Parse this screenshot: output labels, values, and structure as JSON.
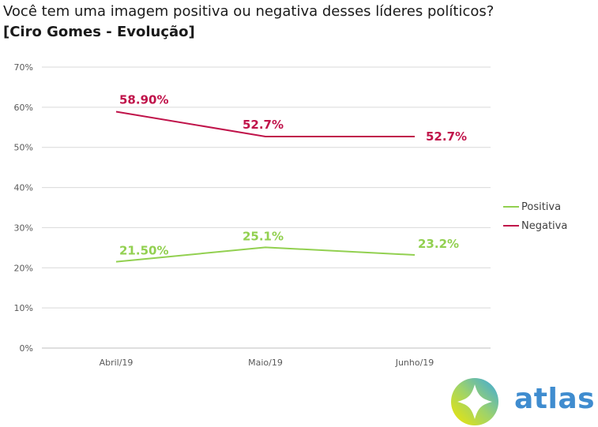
{
  "title": "Você tem uma imagem positiva ou negativa desses líderes políticos?",
  "subtitle": "[Ciro Gomes - Evolução]",
  "chart_data": {
    "type": "line",
    "categories": [
      "Abril/19",
      "Maio/19",
      "Junho/19"
    ],
    "ylim": [
      0,
      70
    ],
    "yticks": [
      0,
      10,
      20,
      30,
      40,
      50,
      60,
      70
    ],
    "ytick_labels": [
      "0%",
      "10%",
      "20%",
      "30%",
      "40%",
      "50%",
      "60%",
      "70%"
    ],
    "grid": true,
    "legend_position": "right",
    "series": [
      {
        "name": "Positiva",
        "color": "#92d050",
        "values": [
          21.5,
          25.1,
          23.2
        ],
        "labels": [
          "21.50%",
          "25.1%",
          "23.2%"
        ]
      },
      {
        "name": "Negativa",
        "color": "#c0134a",
        "values": [
          58.9,
          52.7,
          52.7
        ],
        "labels": [
          "58.90%",
          "52.7%",
          "52.7%"
        ]
      }
    ]
  },
  "brand": {
    "name": "atlas",
    "logo_icon": "atlas-logo-icon"
  }
}
